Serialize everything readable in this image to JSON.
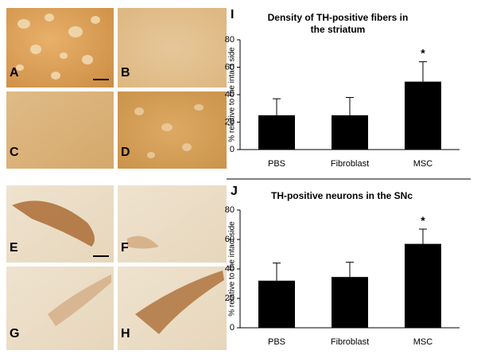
{
  "panels": [
    "A",
    "B",
    "C",
    "D",
    "E",
    "F",
    "G",
    "H"
  ],
  "chart_data": [
    {
      "type": "bar",
      "panel_label": "I",
      "title": "Density of TH-positive fibers in the striatum",
      "y_label": "% relative to the intact side",
      "categories": [
        "PBS",
        "Fibroblast",
        "MSC"
      ],
      "values": [
        25,
        25,
        49.5
      ],
      "errors": [
        12,
        13,
        14.5
      ],
      "color": "#000000",
      "ylim": [
        0,
        80
      ],
      "yticks": [
        0,
        20,
        40,
        60,
        80
      ],
      "grid": false,
      "annotation": {
        "text": "*",
        "category": "MSC"
      }
    },
    {
      "type": "bar",
      "panel_label": "J",
      "title": "TH-positive neurons in the SNc",
      "y_label": "% relative to the intact side",
      "categories": [
        "PBS",
        "Fibroblast",
        "MSC"
      ],
      "values": [
        32,
        34.5,
        57
      ],
      "errors": [
        12,
        10,
        10
      ],
      "color": "#000000",
      "ylim": [
        0,
        80
      ],
      "yticks": [
        0,
        20,
        40,
        60,
        80
      ],
      "grid": false,
      "annotation": {
        "text": "*",
        "category": "MSC"
      }
    }
  ]
}
